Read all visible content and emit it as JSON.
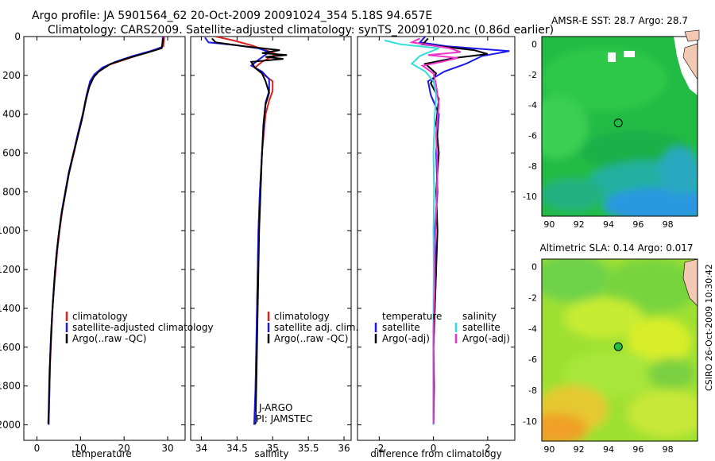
{
  "header": {
    "line1": "Argo profile: JA 5901564_62 20-Oct-2009 20091024_354 5.18S 94.657E",
    "line2": "Climatology: CARS2009. Satellite-adjusted climatology: synTS_20091020.nc (0.86d earlier)"
  },
  "colors": {
    "climatology": "#dd2222",
    "satellite": "#1a1aee",
    "argo": "#000000",
    "sal_satellite": "#33dddd",
    "sal_argo": "#ee33cc"
  },
  "chart_data": [
    {
      "type": "line",
      "id": "temperature",
      "xlabel": "temperature",
      "ylabel": "",
      "xlim": [
        -3,
        34
      ],
      "ylim": [
        2080,
        0
      ],
      "xticks": [
        0,
        10,
        20,
        30
      ],
      "yticks": [
        0,
        200,
        400,
        600,
        800,
        1000,
        1200,
        1400,
        1600,
        1800,
        2000
      ],
      "legend": [
        "climatology",
        "satellite-adjusted climatology",
        "Argo(..raw -QC)"
      ],
      "series": [
        {
          "name": "climatology",
          "color": "#dd2222",
          "points": [
            [
              29.2,
              0
            ],
            [
              29.0,
              50
            ],
            [
              27,
              70
            ],
            [
              24,
              90
            ],
            [
              20,
              120
            ],
            [
              16,
              150
            ],
            [
              13.5,
              190
            ],
            [
              12.5,
              220
            ],
            [
              11.5,
              300
            ],
            [
              10.6,
              400
            ],
            [
              9.5,
              500
            ],
            [
              8.5,
              600
            ],
            [
              7.4,
              700
            ],
            [
              6.6,
              800
            ],
            [
              5.8,
              900
            ],
            [
              5.2,
              1000
            ],
            [
              4.7,
              1100
            ],
            [
              4.3,
              1200
            ],
            [
              3.9,
              1300
            ],
            [
              3.6,
              1400
            ],
            [
              3.4,
              1500
            ],
            [
              3.2,
              1600
            ],
            [
              3.0,
              1700
            ],
            [
              2.9,
              1800
            ],
            [
              2.8,
              1900
            ],
            [
              2.7,
              2000
            ]
          ]
        },
        {
          "name": "satellite-adjusted climatology",
          "color": "#1a1aee",
          "points": [
            [
              28.9,
              0
            ],
            [
              28.7,
              55
            ],
            [
              26,
              75
            ],
            [
              22,
              100
            ],
            [
              18,
              130
            ],
            [
              15,
              160
            ],
            [
              13.2,
              195
            ],
            [
              12.2,
              230
            ],
            [
              11.4,
              300
            ],
            [
              10.5,
              400
            ],
            [
              9.4,
              500
            ],
            [
              8.4,
              600
            ],
            [
              7.3,
              700
            ],
            [
              6.5,
              800
            ],
            [
              5.7,
              900
            ],
            [
              5.1,
              1000
            ],
            [
              4.6,
              1100
            ],
            [
              4.2,
              1200
            ],
            [
              3.9,
              1300
            ],
            [
              3.6,
              1400
            ],
            [
              3.3,
              1500
            ],
            [
              3.1,
              1600
            ],
            [
              3.0,
              1700
            ],
            [
              2.9,
              1800
            ],
            [
              2.8,
              1900
            ],
            [
              2.7,
              2000
            ]
          ]
        },
        {
          "name": "Argo(..raw -QC)",
          "color": "#000000",
          "points": [
            [
              29.0,
              10
            ],
            [
              28.6,
              60
            ],
            [
              25,
              85
            ],
            [
              21,
              110
            ],
            [
              17,
              140
            ],
            [
              14.2,
              180
            ],
            [
              13,
              210
            ],
            [
              12.0,
              260
            ],
            [
              11.2,
              330
            ],
            [
              10.3,
              430
            ],
            [
              9.3,
              520
            ],
            [
              8.2,
              620
            ],
            [
              7.2,
              720
            ],
            [
              6.4,
              820
            ],
            [
              5.6,
              920
            ],
            [
              5.0,
              1020
            ],
            [
              4.5,
              1120
            ],
            [
              4.1,
              1220
            ],
            [
              3.8,
              1320
            ],
            [
              3.5,
              1420
            ],
            [
              3.3,
              1520
            ],
            [
              3.1,
              1620
            ],
            [
              2.9,
              1720
            ],
            [
              2.8,
              1820
            ],
            [
              2.7,
              1920
            ],
            [
              2.6,
              1995
            ]
          ]
        }
      ]
    },
    {
      "type": "line",
      "id": "salinity",
      "xlabel": "salinity",
      "ylabel": "",
      "xlim": [
        33.85,
        36.1
      ],
      "ylim": [
        2080,
        0
      ],
      "xticks": [
        34,
        34.5,
        35,
        35.5,
        36
      ],
      "legend": [
        "climatology",
        "satellite adj. clim.",
        "Argo(..raw -QC)"
      ],
      "annotation": [
        "J-ARGO",
        "PI: JAMSTEC"
      ],
      "series": [
        {
          "name": "climatology",
          "color": "#dd2222",
          "points": [
            [
              34.2,
              0
            ],
            [
              34.45,
              20
            ],
            [
              34.7,
              45
            ],
            [
              34.9,
              70
            ],
            [
              35.05,
              90
            ],
            [
              34.85,
              130
            ],
            [
              34.75,
              160
            ],
            [
              34.85,
              190
            ],
            [
              35.0,
              230
            ],
            [
              35.0,
              280
            ],
            [
              34.95,
              330
            ],
            [
              34.9,
              400
            ],
            [
              34.85,
              600
            ],
            [
              34.82,
              800
            ],
            [
              34.8,
              1000
            ],
            [
              34.79,
              1200
            ],
            [
              34.78,
              1400
            ],
            [
              34.77,
              1600
            ],
            [
              34.76,
              1800
            ],
            [
              34.75,
              2000
            ]
          ]
        },
        {
          "name": "satellite adj. clim.",
          "color": "#1a1aee",
          "points": [
            [
              34.05,
              5
            ],
            [
              34.1,
              30
            ],
            [
              34.5,
              45
            ],
            [
              34.8,
              60
            ],
            [
              34.95,
              80
            ],
            [
              34.8,
              120
            ],
            [
              34.7,
              150
            ],
            [
              34.85,
              180
            ],
            [
              34.95,
              220
            ],
            [
              34.95,
              280
            ],
            [
              34.9,
              340
            ],
            [
              34.88,
              420
            ],
            [
              34.85,
              600
            ],
            [
              34.82,
              800
            ],
            [
              34.8,
              1000
            ],
            [
              34.79,
              1200
            ],
            [
              34.78,
              1400
            ],
            [
              34.77,
              1600
            ],
            [
              34.76,
              1800
            ],
            [
              34.74,
              2000
            ]
          ]
        },
        {
          "name": "Argo(..raw -QC)",
          "color": "#000000",
          "points": [
            [
              34.15,
              10
            ],
            [
              34.2,
              30
            ],
            [
              34.6,
              50
            ],
            [
              35.1,
              70
            ],
            [
              34.85,
              85
            ],
            [
              35.2,
              95
            ],
            [
              34.9,
              105
            ],
            [
              35.15,
              115
            ],
            [
              34.7,
              130
            ],
            [
              34.75,
              160
            ],
            [
              34.85,
              190
            ],
            [
              34.9,
              230
            ],
            [
              34.95,
              290
            ],
            [
              34.9,
              350
            ],
            [
              34.87,
              450
            ],
            [
              34.85,
              600
            ],
            [
              34.83,
              800
            ],
            [
              34.81,
              1000
            ],
            [
              34.8,
              1200
            ],
            [
              34.79,
              1400
            ],
            [
              34.78,
              1600
            ],
            [
              34.77,
              1800
            ],
            [
              34.76,
              1995
            ]
          ]
        }
      ]
    },
    {
      "type": "line",
      "id": "difference",
      "xlabel": "difference from climatology",
      "ylabel": "",
      "xlim": [
        -2.8,
        3.0
      ],
      "ylim": [
        2080,
        0
      ],
      "xticks": [
        -2,
        0,
        2
      ],
      "legend_groups": {
        "temperature": [
          "satellite",
          "Argo(-adj)"
        ],
        "salinity": [
          "satellite",
          "Argo(-adj)"
        ]
      },
      "series": [
        {
          "name": "temperature satellite",
          "color": "#1a1aee",
          "points": [
            [
              -0.3,
              0
            ],
            [
              -0.5,
              30
            ],
            [
              0.5,
              50
            ],
            [
              2.8,
              75
            ],
            [
              1.8,
              100
            ],
            [
              1.2,
              140
            ],
            [
              0.4,
              180
            ],
            [
              -0.2,
              230
            ],
            [
              -0.1,
              300
            ],
            [
              0.2,
              400
            ],
            [
              0.1,
              600
            ],
            [
              0.15,
              800
            ],
            [
              0.05,
              1000
            ],
            [
              0.1,
              1200
            ],
            [
              0.05,
              1400
            ],
            [
              0.0,
              1600
            ],
            [
              0.02,
              1800
            ],
            [
              0.0,
              2000
            ]
          ]
        },
        {
          "name": "temperature Argo(-adj)",
          "color": "#000000",
          "points": [
            [
              -0.2,
              10
            ],
            [
              -0.4,
              40
            ],
            [
              1.5,
              70
            ],
            [
              2.0,
              90
            ],
            [
              0.8,
              110
            ],
            [
              -0.3,
              140
            ],
            [
              0.1,
              190
            ],
            [
              -0.1,
              240
            ],
            [
              0.2,
              320
            ],
            [
              0.1,
              450
            ],
            [
              0.2,
              600
            ],
            [
              0.1,
              800
            ],
            [
              0.15,
              1000
            ],
            [
              0.1,
              1200
            ],
            [
              0.05,
              1400
            ],
            [
              0.0,
              1600
            ],
            [
              0.02,
              1800
            ],
            [
              0.0,
              1995
            ]
          ]
        },
        {
          "name": "salinity satellite",
          "color": "#33dddd",
          "points": [
            [
              -1.8,
              20
            ],
            [
              -1.2,
              40
            ],
            [
              0.2,
              60
            ],
            [
              -0.5,
              100
            ],
            [
              -0.8,
              140
            ],
            [
              -0.3,
              180
            ],
            [
              0.0,
              230
            ],
            [
              0.1,
              300
            ],
            [
              0.05,
              400
            ],
            [
              0.0,
              600
            ],
            [
              0.02,
              800
            ],
            [
              0.0,
              1000
            ],
            [
              0.01,
              1200
            ],
            [
              0.0,
              1400
            ],
            [
              0.0,
              1600
            ],
            [
              0.0,
              1800
            ],
            [
              0.0,
              2000
            ]
          ]
        },
        {
          "name": "salinity Argo(-adj)",
          "color": "#ee33cc",
          "points": [
            [
              -0.5,
              10
            ],
            [
              -0.8,
              30
            ],
            [
              0.6,
              60
            ],
            [
              1.0,
              80
            ],
            [
              -0.2,
              95
            ],
            [
              0.9,
              110
            ],
            [
              0.3,
              130
            ],
            [
              -0.4,
              150
            ],
            [
              0.0,
              190
            ],
            [
              0.1,
              250
            ],
            [
              0.2,
              350
            ],
            [
              0.1,
              500
            ],
            [
              0.15,
              700
            ],
            [
              0.1,
              900
            ],
            [
              0.05,
              1100
            ],
            [
              0.05,
              1300
            ],
            [
              0.0,
              1500
            ],
            [
              0.0,
              1700
            ],
            [
              0.0,
              1995
            ]
          ]
        }
      ]
    },
    {
      "type": "heatmap",
      "id": "sst-map",
      "title": "AMSR-E SST: 28.7 Argo: 28.7",
      "xlim": [
        89.5,
        100
      ],
      "ylim": [
        -11.3,
        0.5
      ],
      "xticks": [
        90,
        92,
        94,
        96,
        98
      ],
      "yticks": [
        0,
        -2,
        -4,
        -6,
        -8,
        -10
      ],
      "marker": {
        "lon": 94.657,
        "lat": -5.18
      }
    },
    {
      "type": "heatmap",
      "id": "sla-map",
      "title": "Altimetric SLA: 0.14 Argo: 0.017",
      "xlim": [
        89.5,
        100
      ],
      "ylim": [
        -11.3,
        0.5
      ],
      "xticks": [
        90,
        92,
        94,
        96,
        98
      ],
      "yticks": [
        0,
        -2,
        -4,
        -6,
        -8,
        -10
      ],
      "marker": {
        "lon": 94.657,
        "lat": -5.18
      }
    }
  ],
  "footer": {
    "credit": "CSIRO 26-Oct-2009 10:30:42"
  }
}
